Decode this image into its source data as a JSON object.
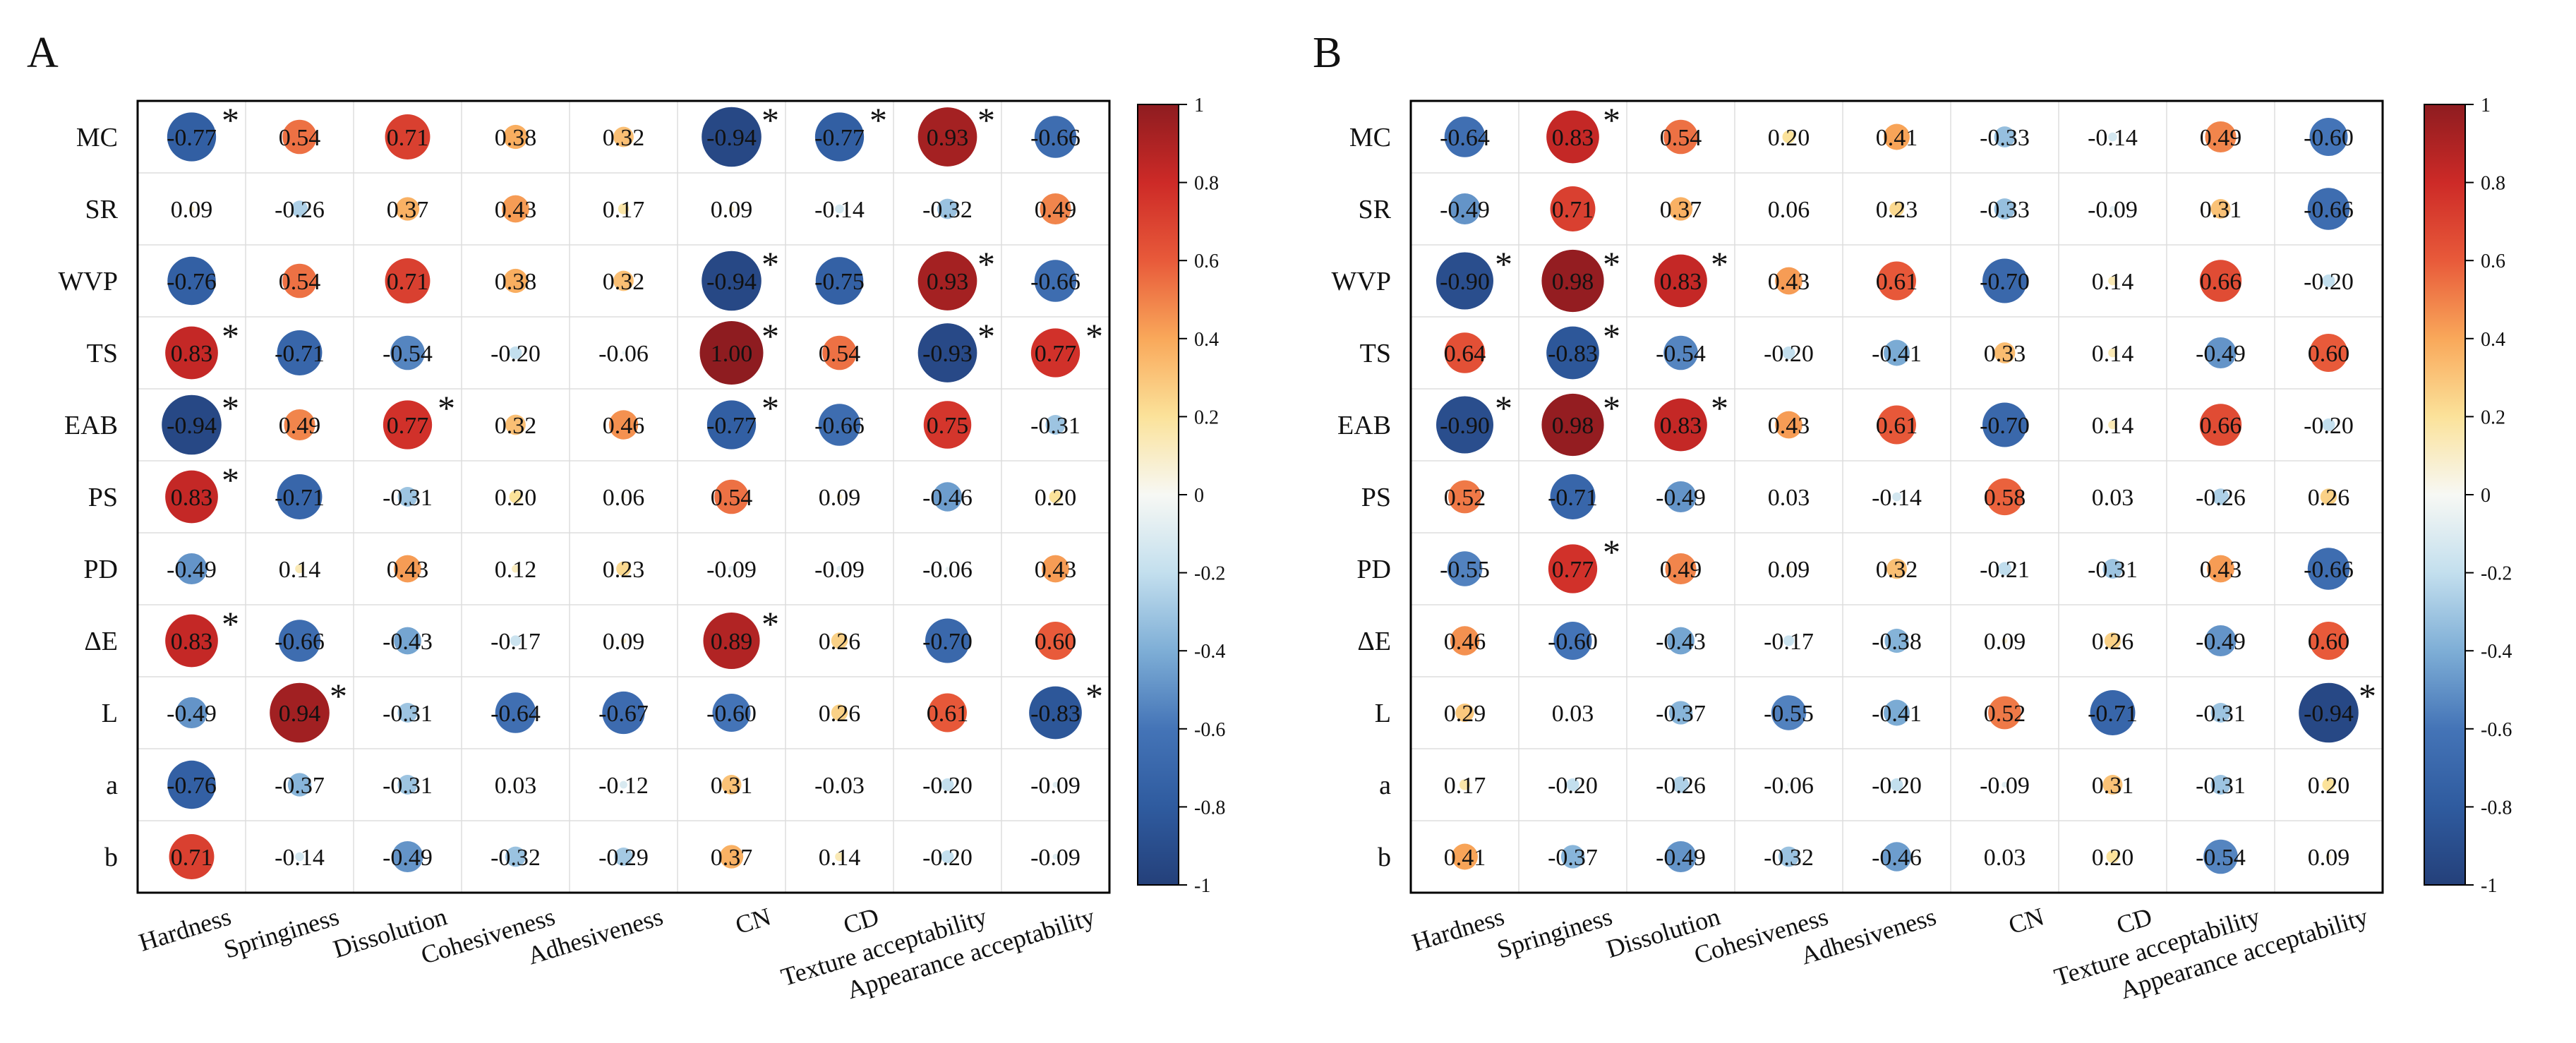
{
  "chart_data": [
    {
      "type": "heatmap",
      "panel_label": "A",
      "rows": [
        "MC",
        "SR",
        "WVP",
        "TS",
        "EAB",
        "PS",
        "PD",
        "ΔE",
        "L",
        "a",
        "b"
      ],
      "columns": [
        "Hardness",
        "Springiness",
        "Dissolution",
        "Cohesiveness",
        "Adhesiveness",
        "CN",
        "CD",
        "Texture acceptability",
        "Appearance acceptability"
      ],
      "values": [
        [
          -0.77,
          0.54,
          0.71,
          0.38,
          0.32,
          -0.94,
          -0.77,
          0.93,
          -0.66
        ],
        [
          0.09,
          -0.26,
          0.37,
          0.43,
          0.17,
          0.09,
          -0.14,
          -0.32,
          0.49
        ],
        [
          -0.76,
          0.54,
          0.71,
          0.38,
          0.32,
          -0.94,
          -0.75,
          0.93,
          -0.66
        ],
        [
          0.83,
          -0.71,
          -0.54,
          -0.2,
          -0.06,
          1.0,
          0.54,
          -0.93,
          0.77
        ],
        [
          -0.94,
          0.49,
          0.77,
          0.32,
          0.46,
          -0.77,
          -0.66,
          0.75,
          -0.31
        ],
        [
          0.83,
          -0.71,
          -0.31,
          0.2,
          0.06,
          0.54,
          0.09,
          -0.46,
          0.2
        ],
        [
          -0.49,
          0.14,
          0.43,
          0.12,
          0.23,
          -0.09,
          -0.09,
          -0.06,
          0.43
        ],
        [
          0.83,
          -0.66,
          -0.43,
          -0.17,
          0.09,
          0.89,
          0.26,
          -0.7,
          0.6
        ],
        [
          -0.49,
          0.94,
          -0.31,
          -0.64,
          -0.67,
          -0.6,
          0.26,
          0.61,
          -0.83
        ],
        [
          -0.76,
          -0.37,
          -0.31,
          0.03,
          -0.12,
          0.31,
          -0.03,
          -0.2,
          -0.09
        ],
        [
          0.71,
          -0.14,
          -0.49,
          -0.32,
          -0.29,
          0.37,
          0.14,
          -0.2,
          -0.09
        ]
      ],
      "labels": [
        [
          "-0.77",
          "0.54",
          "0.71",
          "0.38",
          "0.32",
          "-0.94",
          "-0.77",
          "0.93",
          "-0.66"
        ],
        [
          "0.09",
          "-0.26",
          "0.37",
          "0.43",
          "0.17",
          "0.09",
          "-0.14",
          "-0.32",
          "0.49"
        ],
        [
          "-0.76",
          "0.54",
          "0.71",
          "0.38",
          "0.32",
          "-0.94",
          "-0.75",
          "0.93",
          "-0.66"
        ],
        [
          "0.83",
          "-0.71",
          "-0.54",
          "-0.20",
          "-0.06",
          "1.00",
          "0.54",
          "-0.93",
          "0.77"
        ],
        [
          "-0.94",
          "0.49",
          "0.77",
          "0.32",
          "0.46",
          "-0.77",
          "-0.66",
          "0.75",
          "-0.31"
        ],
        [
          "0.83",
          "-0.71",
          "-0.31",
          "0.20",
          "0.06",
          "0.54",
          "0.09",
          "-0.46",
          "0.20"
        ],
        [
          "-0.49",
          "0.14",
          "0.43",
          "0.12",
          "0.23",
          "-0.09",
          "-0.09",
          "-0.06",
          "0.43"
        ],
        [
          "0.83",
          "-0.66",
          "-0.43",
          "-0.17",
          "0.09",
          "0.89",
          "0.26",
          "-0.70",
          "0.60"
        ],
        [
          "-0.49",
          "0.94",
          "-0.31",
          "-0.64",
          "-0.67",
          "-0.60",
          "0.26",
          "0.61",
          "-0.83"
        ],
        [
          "-0.76",
          "-0.37",
          "-0.31",
          "0.03",
          "-0.12",
          "0.31",
          "-0.03",
          "-0.20",
          "-0.09"
        ],
        [
          "0.71",
          "-0.14",
          "-0.49",
          "-0.32",
          "-0.29",
          "0.37",
          "0.14",
          "-0.20",
          "-0.09"
        ]
      ],
      "significant": [
        [
          0,
          0
        ],
        [
          0,
          5
        ],
        [
          0,
          6
        ],
        [
          0,
          7
        ],
        [
          2,
          5
        ],
        [
          2,
          7
        ],
        [
          3,
          0
        ],
        [
          3,
          5
        ],
        [
          3,
          7
        ],
        [
          3,
          8
        ],
        [
          4,
          0
        ],
        [
          4,
          2
        ],
        [
          4,
          5
        ],
        [
          5,
          0
        ],
        [
          7,
          0
        ],
        [
          7,
          5
        ],
        [
          8,
          1
        ],
        [
          8,
          8
        ]
      ],
      "significance_marker": "*",
      "colorbar": {
        "min": -1,
        "max": 1,
        "ticks": [
          "1",
          "0.8",
          "0.6",
          "0.4",
          "0.2",
          "0",
          "-0.2",
          "-0.4",
          "-0.6",
          "-0.8",
          "-1"
        ]
      },
      "grid": true
    },
    {
      "type": "heatmap",
      "panel_label": "B",
      "rows": [
        "MC",
        "SR",
        "WVP",
        "TS",
        "EAB",
        "PS",
        "PD",
        "ΔE",
        "L",
        "a",
        "b"
      ],
      "columns": [
        "Hardness",
        "Springiness",
        "Dissolution",
        "Cohesiveness",
        "Adhesiveness",
        "CN",
        "CD",
        "Texture acceptability",
        "Appearance acceptability"
      ],
      "values": [
        [
          -0.64,
          0.83,
          0.54,
          0.2,
          0.41,
          -0.33,
          -0.14,
          0.49,
          -0.6
        ],
        [
          -0.49,
          0.71,
          0.37,
          0.06,
          0.23,
          -0.33,
          -0.09,
          0.31,
          -0.66
        ],
        [
          -0.9,
          0.98,
          0.83,
          0.43,
          0.61,
          -0.7,
          0.14,
          0.66,
          -0.2
        ],
        [
          0.64,
          -0.83,
          -0.54,
          -0.2,
          -0.41,
          0.33,
          0.14,
          -0.49,
          0.6
        ],
        [
          -0.9,
          0.98,
          0.83,
          0.43,
          0.61,
          -0.7,
          0.14,
          0.66,
          -0.2
        ],
        [
          0.52,
          -0.71,
          -0.49,
          0.03,
          -0.14,
          0.58,
          0.03,
          -0.26,
          0.26
        ],
        [
          -0.55,
          0.77,
          0.49,
          0.09,
          0.32,
          -0.21,
          -0.31,
          0.43,
          -0.66
        ],
        [
          0.46,
          -0.6,
          -0.43,
          -0.17,
          -0.38,
          0.09,
          0.26,
          -0.49,
          0.6
        ],
        [
          0.29,
          0.03,
          -0.37,
          -0.55,
          -0.41,
          0.52,
          -0.71,
          -0.31,
          -0.94
        ],
        [
          0.17,
          -0.2,
          -0.26,
          -0.06,
          -0.2,
          -0.09,
          0.31,
          -0.31,
          0.2
        ],
        [
          0.41,
          -0.37,
          -0.49,
          -0.32,
          -0.46,
          0.03,
          0.2,
          -0.54,
          0.09
        ]
      ],
      "labels": [
        [
          "-0.64",
          "0.83",
          "0.54",
          "0.20",
          "0.41",
          "-0.33",
          "-0.14",
          "0.49",
          "-0.60"
        ],
        [
          "-0.49",
          "0.71",
          "0.37",
          "0.06",
          "0.23",
          "-0.33",
          "-0.09",
          "0.31",
          "-0.66"
        ],
        [
          "-0.90",
          "0.98",
          "0.83",
          "0.43",
          "0.61",
          "-0.70",
          "0.14",
          "0.66",
          "-0.20"
        ],
        [
          "0.64",
          "-0.83",
          "-0.54",
          "-0.20",
          "-0.41",
          "0.33",
          "0.14",
          "-0.49",
          "0.60"
        ],
        [
          "-0.90",
          "0.98",
          "0.83",
          "0.43",
          "0.61",
          "-0.70",
          "0.14",
          "0.66",
          "-0.20"
        ],
        [
          "0.52",
          "-0.71",
          "-0.49",
          "0.03",
          "-0.14",
          "0.58",
          "0.03",
          "-0.26",
          "0.26"
        ],
        [
          "-0.55",
          "0.77",
          "0.49",
          "0.09",
          "0.32",
          "-0.21",
          "-0.31",
          "0.43",
          "-0.66"
        ],
        [
          "0.46",
          "-0.60",
          "-0.43",
          "-0.17",
          "-0.38",
          "0.09",
          "0.26",
          "-0.49",
          "0.60"
        ],
        [
          "0.29",
          "0.03",
          "-0.37",
          "-0.55",
          "-0.41",
          "0.52",
          "-0.71",
          "-0.31",
          "-0.94"
        ],
        [
          "0.17",
          "-0.20",
          "-0.26",
          "-0.06",
          "-0.20",
          "-0.09",
          "0.31",
          "-0.31",
          "0.20"
        ],
        [
          "0.41",
          "-0.37",
          "-0.49",
          "-0.32",
          "-0.46",
          "0.03",
          "0.20",
          "-0.54",
          "0.09"
        ]
      ],
      "significant": [
        [
          0,
          1
        ],
        [
          2,
          0
        ],
        [
          2,
          1
        ],
        [
          2,
          2
        ],
        [
          3,
          1
        ],
        [
          4,
          0
        ],
        [
          4,
          1
        ],
        [
          4,
          2
        ],
        [
          6,
          1
        ],
        [
          8,
          8
        ]
      ],
      "significance_marker": "*",
      "colorbar": {
        "min": -1,
        "max": 1,
        "ticks": [
          "1",
          "0.8",
          "0.6",
          "0.4",
          "0.2",
          "0",
          "-0.2",
          "-0.4",
          "-0.6",
          "-0.8",
          "-1"
        ]
      },
      "grid": true
    }
  ],
  "colors": {
    "scale": [
      [
        -1.0,
        "#24407a"
      ],
      [
        -0.8,
        "#2f5b9f"
      ],
      [
        -0.6,
        "#4474b7"
      ],
      [
        -0.4,
        "#7eaed6"
      ],
      [
        -0.2,
        "#c3dfee"
      ],
      [
        0.0,
        "#f7f8f4"
      ],
      [
        0.2,
        "#fbe29a"
      ],
      [
        0.4,
        "#f9a85a"
      ],
      [
        0.6,
        "#e85a3a"
      ],
      [
        0.8,
        "#cd2a27"
      ],
      [
        1.0,
        "#8e1c20"
      ]
    ],
    "grid_line": "#dddddd",
    "frame": "#000000"
  }
}
